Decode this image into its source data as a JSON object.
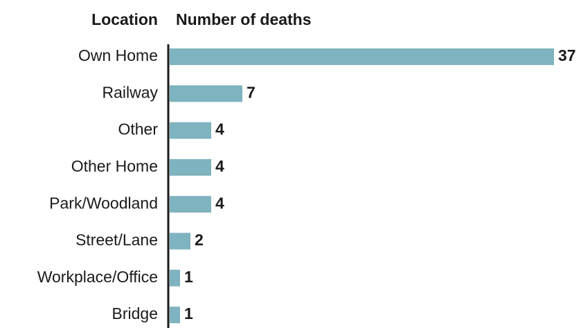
{
  "chart_data": {
    "type": "bar",
    "orientation": "horizontal",
    "category_header": "Location",
    "value_header": "Number of deaths",
    "categories": [
      "Own Home",
      "Railway",
      "Other",
      "Other Home",
      "Park/Woodland",
      "Street/Lane",
      "Workplace/Office",
      "Bridge"
    ],
    "values": [
      37,
      7,
      4,
      4,
      4,
      2,
      1,
      1
    ],
    "color": "#7fb3bf"
  }
}
